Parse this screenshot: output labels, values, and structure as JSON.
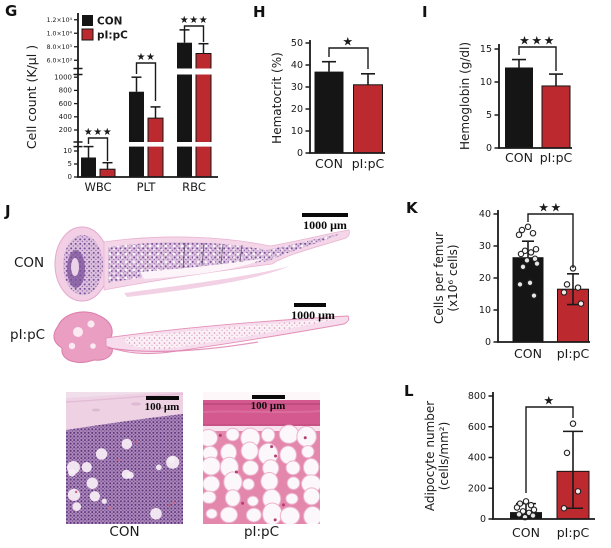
{
  "figure": {
    "background": "#ffffff",
    "panel_labels": {
      "g": "G",
      "h": "H",
      "i": "I",
      "j": "J",
      "k": "K",
      "l": "L"
    }
  },
  "colors": {
    "con": "#151515",
    "pipc": "#bc2a2f",
    "axis": "#1a1a1a"
  },
  "chart_data": [
    {
      "panel": "G",
      "type": "bar",
      "ylabel": "Cell count (K/μl )",
      "categories": [
        "WBC",
        "PLT",
        "RBC"
      ],
      "series": [
        {
          "name": "CON",
          "color": "#151515",
          "values": [
            7.5,
            780,
            8600
          ],
          "errors_up": [
            4.2,
            220,
            1900
          ]
        },
        {
          "name": "pI:pC",
          "color": "#bc2a2f",
          "values": [
            3,
            380,
            7000
          ],
          "errors_up": [
            2.5,
            170,
            1450
          ]
        }
      ],
      "significance": [
        "★★★",
        "★★",
        "★★★"
      ],
      "axis_break": true,
      "y_axis_segments": [
        {
          "range": [
            0,
            12
          ],
          "ticks": [
            0,
            5,
            10
          ],
          "tick_labels": [
            "0",
            "5",
            "10"
          ]
        },
        {
          "range": [
            50,
            1050
          ],
          "ticks": [
            200,
            400,
            600,
            800,
            1000
          ],
          "tick_labels": [
            "200",
            "400",
            "600",
            "800",
            "1000"
          ]
        },
        {
          "range": [
            5000,
            12500
          ],
          "ticks": [
            6000,
            8000,
            10000,
            12000
          ],
          "tick_labels": [
            "6.0×10³",
            "8.0×10³",
            "1.0×10⁴",
            "1.2×10⁴"
          ]
        }
      ],
      "legend_position": "top-left-inside"
    },
    {
      "panel": "H",
      "type": "bar",
      "ylabel": "Hematocrit (%)",
      "categories": [
        "CON",
        "pI:pC"
      ],
      "values": [
        37,
        31
      ],
      "errors_up": [
        4.5,
        5
      ],
      "bar_colors": [
        "#151515",
        "#bc2a2f"
      ],
      "ylim": [
        0,
        50
      ],
      "yticks": [
        0,
        10,
        20,
        30,
        40,
        50
      ],
      "significance": "★"
    },
    {
      "panel": "I",
      "type": "bar",
      "ylabel": "Hemoglobin (g/dl)",
      "categories": [
        "CON",
        "pI:pC"
      ],
      "values": [
        12.2,
        9.4
      ],
      "errors_up": [
        1.2,
        1.8
      ],
      "bar_colors": [
        "#151515",
        "#bc2a2f"
      ],
      "ylim": [
        0,
        15
      ],
      "yticks": [
        0,
        5,
        10,
        15
      ],
      "significance": "★★★"
    },
    {
      "panel": "K",
      "type": "bar-scatter",
      "ylabel_lines": [
        "Cells per femur",
        "(x10⁶ cells)"
      ],
      "categories": [
        "CON",
        "pI:pC"
      ],
      "values": [
        26.5,
        16.5
      ],
      "errors_up": [
        5,
        4.8
      ],
      "errors_down": [
        0,
        4.8
      ],
      "scatter": [
        [
          36,
          35,
          34,
          33.5,
          29,
          28.5,
          28,
          27.5,
          26,
          25.5,
          24.5,
          23.5,
          18.5,
          18,
          14.5
        ],
        [
          23,
          18,
          17,
          15.5,
          12
        ]
      ],
      "bar_colors": [
        "#151515",
        "#bc2a2f"
      ],
      "ylim": [
        0,
        40
      ],
      "yticks": [
        0,
        10,
        20,
        30,
        40
      ],
      "significance": "★★"
    },
    {
      "panel": "L",
      "type": "bar-scatter",
      "ylabel_lines": [
        "Adipocyte number",
        "(cells/mm²)"
      ],
      "categories": [
        "CON",
        "pI:pC"
      ],
      "values": [
        45,
        310
      ],
      "errors_up": [
        55,
        260
      ],
      "errors_down": [
        0,
        240
      ],
      "scatter": [
        [
          115,
          100,
          90,
          75,
          60,
          50,
          40,
          30,
          22,
          12
        ],
        [
          620,
          430,
          180,
          70
        ]
      ],
      "bar_colors": [
        "#151515",
        "#bc2a2f"
      ],
      "ylim": [
        0,
        800
      ],
      "yticks": [
        0,
        200,
        400,
        600,
        800
      ],
      "significance": "★"
    }
  ],
  "panel_j": {
    "label": "J",
    "sections": [
      {
        "name": "con-femur",
        "label": "CON",
        "scale_bar": "1000 μm"
      },
      {
        "name": "pipc-femur",
        "label": "pI:pC",
        "scale_bar": "1000 μm"
      }
    ],
    "insets": [
      {
        "name": "con-inset",
        "label": "CON",
        "scale_bar": "100 μm"
      },
      {
        "name": "pipc-inset",
        "label": "pI:pC",
        "scale_bar": "100 μm"
      }
    ]
  }
}
